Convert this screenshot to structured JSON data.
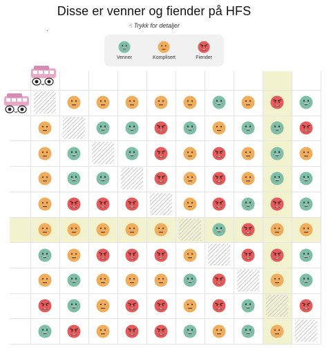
{
  "header": {
    "title": "Disse er venner og fiender på HFS",
    "hint": "Trykk for detaljer"
  },
  "legend": [
    {
      "key": "venn",
      "label": "Venner",
      "icon": "friend-emoji-icon"
    },
    {
      "key": "komp",
      "label": "Komplisert",
      "icon": "neutral-emoji-icon"
    },
    {
      "key": "fiende",
      "label": "Fiender",
      "icon": "enemy-emoji-icon"
    }
  ],
  "colors": {
    "venn": "#7fbfa8",
    "komp": "#f0ad5c",
    "fiende": "#e45b5b",
    "highlight": "#f2f2cf",
    "legend_bg": "#f1f1f1"
  },
  "matrix": [
    [
      "x",
      "k",
      "k",
      "k",
      "k",
      "k",
      "v",
      "k",
      "f",
      "v"
    ],
    [
      "k",
      "x",
      "v",
      "v",
      "f",
      "v",
      "k",
      "v",
      "v",
      "f"
    ],
    [
      "k",
      "v",
      "x",
      "v",
      "f",
      "k",
      "f",
      "k",
      "v",
      "k"
    ],
    [
      "k",
      "v",
      "v",
      "x",
      "f",
      "k",
      "f",
      "k",
      "v",
      "v"
    ],
    [
      "k",
      "f",
      "f",
      "f",
      "x",
      "k",
      "f",
      "v",
      "f",
      "v"
    ],
    [
      "k",
      "k",
      "k",
      "k",
      "k",
      "x",
      "v",
      "f",
      "k",
      "k"
    ],
    [
      "v",
      "k",
      "f",
      "f",
      "f",
      "k",
      "x",
      "f",
      "f",
      "v"
    ],
    [
      "k",
      "v",
      "k",
      "k",
      "k",
      "v",
      "f",
      "x",
      "k",
      "v"
    ],
    [
      "f",
      "v",
      "k",
      "f",
      "f",
      "k",
      "f",
      "v",
      "x",
      "f"
    ],
    [
      "v",
      "f",
      "k",
      "f",
      "f",
      "v",
      "k",
      "v",
      "k",
      "x"
    ]
  ]
}
